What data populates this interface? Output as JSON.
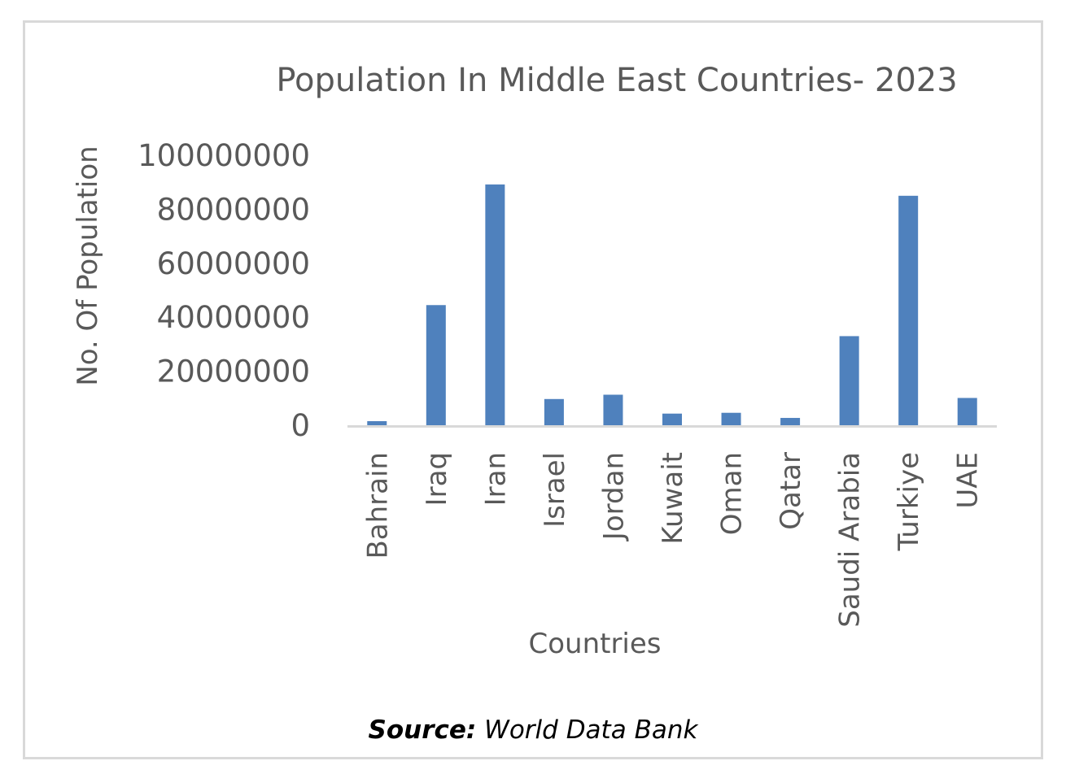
{
  "chart_data": {
    "type": "bar",
    "title": "Population In Middle East Countries- 2023",
    "xlabel": "Countries",
    "ylabel": "No. Of Population",
    "categories": [
      "Bahrain",
      "Iraq",
      "Iran",
      "Israel",
      "Jordan",
      "Kuwait",
      "Oman",
      "Qatar",
      "Saudi Arabia",
      "Turkiye",
      "UAE"
    ],
    "values": [
      1500000,
      44500000,
      89200000,
      9700000,
      11300000,
      4300000,
      4600000,
      2700000,
      33000000,
      85000000,
      10100000
    ],
    "ylim": [
      0,
      100000000
    ],
    "yticks": [
      "0",
      "20000000",
      "40000000",
      "60000000",
      "80000000",
      "100000000"
    ],
    "grid": false,
    "legend": "none",
    "bar_color": "#4f81bd",
    "axis_color": "#d9d9d9"
  },
  "source": {
    "label": "Source:",
    "text": " World Data Bank"
  }
}
